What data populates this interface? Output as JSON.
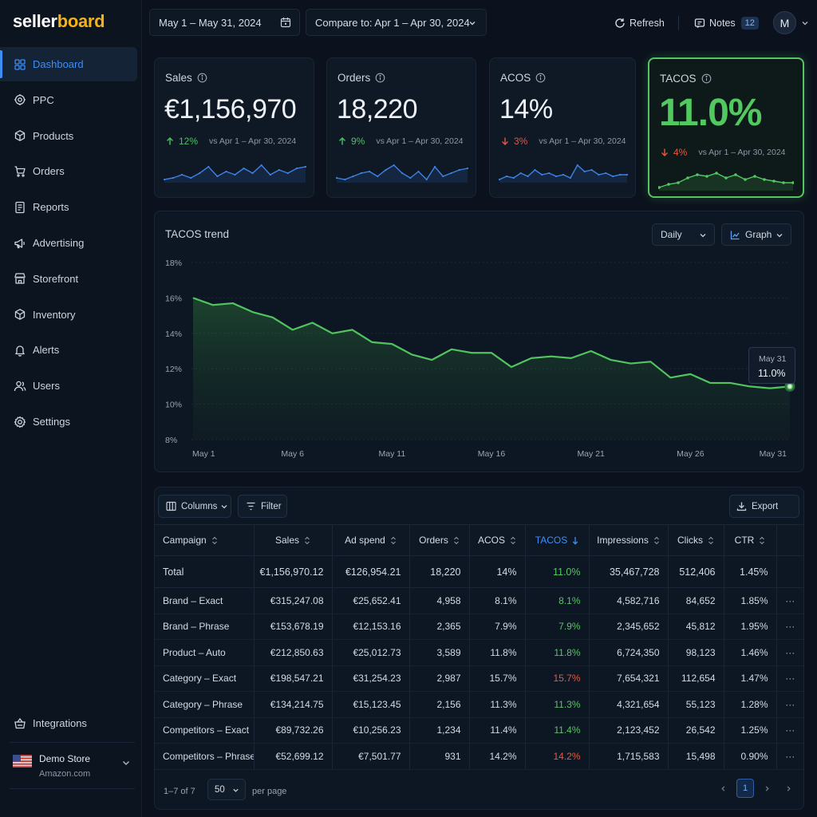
{
  "brand": {
    "part1": "seller",
    "part2": "board",
    "accent": "#f3b21b"
  },
  "sidebar": {
    "items": [
      {
        "label": "Dashboard",
        "icon": "grid-icon",
        "active": true
      },
      {
        "label": "PPC",
        "icon": "target-icon"
      },
      {
        "label": "Products",
        "icon": "box-icon"
      },
      {
        "label": "Orders",
        "icon": "cart-icon"
      },
      {
        "label": "Reports",
        "icon": "report-icon"
      },
      {
        "label": "Advertising",
        "icon": "megaphone-icon"
      },
      {
        "label": "Storefront",
        "icon": "store-icon"
      },
      {
        "label": "Inventory",
        "icon": "cube-icon"
      },
      {
        "label": "Alerts",
        "icon": "bell-icon"
      },
      {
        "label": "Users",
        "icon": "users-icon"
      },
      {
        "label": "Settings",
        "icon": "gear-icon"
      }
    ],
    "integrations": {
      "label": "Integrations",
      "icon": "basket-icon"
    },
    "store": {
      "name": "Demo Store",
      "marketplace": "Amazon.com",
      "flag": "us-flag-icon"
    }
  },
  "topbar": {
    "date_range": "May 1 – May 31, 2024",
    "compare": "Compare to: Apr 1 – Apr 30, 2024",
    "refresh": "Refresh",
    "notes": "Notes",
    "notes_count": "12",
    "avatar_initial": "M"
  },
  "kpis": [
    {
      "id": "sales",
      "title": "Sales",
      "value": "€1,156,970",
      "delta": "12%",
      "direction": "up",
      "vs": "vs Apr 1 – Apr 30, 2024",
      "spark": [
        14,
        15,
        17,
        15,
        18,
        22,
        16,
        19,
        17,
        21,
        18,
        23,
        17,
        20,
        18,
        21,
        22
      ]
    },
    {
      "id": "orders",
      "title": "Orders",
      "value": "18,220",
      "delta": "9%",
      "direction": "up",
      "vs": "vs Apr 1 – Apr 30, 2024",
      "spark": [
        15,
        14,
        16,
        18,
        19,
        16,
        20,
        23,
        18,
        15,
        19,
        14,
        22,
        16,
        18,
        20,
        21
      ]
    },
    {
      "id": "acos",
      "title": "ACOS",
      "value": "14%",
      "delta": "3%",
      "direction": "down",
      "vs": "vs Apr 1 – Apr 30, 2024",
      "spark": [
        12,
        14,
        13,
        16,
        14,
        18,
        15,
        16,
        14,
        15,
        13,
        21,
        17,
        18,
        15,
        16,
        14,
        15,
        15
      ]
    },
    {
      "id": "tacos",
      "title": "TACOS",
      "value": "11.0%",
      "delta": "4%",
      "direction": "down",
      "vs": "vs Apr 1 – Apr 30, 2024",
      "spark": [
        14,
        16,
        17,
        20,
        22,
        21,
        23,
        20,
        22,
        19,
        21,
        19,
        18,
        17,
        17
      ]
    }
  ],
  "colors": {
    "positive": "#4cc262",
    "negative": "#e9553f",
    "tacos_accent": "#52c860",
    "link_blue": "#3d8ef5"
  },
  "trend": {
    "title": "TACOS trend",
    "period": "Daily",
    "view": "Graph",
    "tooltip": {
      "date": "May 31",
      "value": "11.0%"
    }
  },
  "chart_data": {
    "type": "area",
    "title": "TACOS trend",
    "x": [
      "May 1",
      "May 2",
      "May 3",
      "May 4",
      "May 5",
      "May 6",
      "May 7",
      "May 8",
      "May 9",
      "May 10",
      "May 11",
      "May 12",
      "May 13",
      "May 14",
      "May 15",
      "May 16",
      "May 17",
      "May 18",
      "May 19",
      "May 20",
      "May 21",
      "May 22",
      "May 23",
      "May 24",
      "May 25",
      "May 26",
      "May 27",
      "May 28",
      "May 29",
      "May 30",
      "May 31"
    ],
    "x_ticks": [
      "May 1",
      "May 6",
      "May 11",
      "May 16",
      "May 21",
      "May 26",
      "May 31"
    ],
    "series": [
      {
        "values": [
          16.0,
          15.6,
          15.7,
          15.2,
          14.9,
          14.2,
          14.6,
          14.0,
          14.2,
          13.5,
          13.4,
          12.8,
          12.5,
          13.1,
          12.9,
          12.9,
          12.1,
          12.6,
          12.7,
          12.6,
          13.0,
          12.5,
          12.3,
          12.4,
          11.5,
          11.7,
          11.2,
          11.2,
          11.0,
          10.9,
          11.0
        ]
      }
    ],
    "yticks": [
      "18%",
      "16%",
      "14%",
      "12%",
      "10%",
      "8%"
    ],
    "ylim": [
      8,
      18
    ],
    "grid": true
  },
  "table": {
    "toolbar": {
      "columns": "Columns",
      "filter": "Filter",
      "export": "Export"
    },
    "headers": [
      "Campaign",
      "Sales",
      "Ad spend",
      "Orders",
      "ACOS",
      "TACOS",
      "Impressions",
      "Clicks",
      "CTR"
    ],
    "sorted_column": "TACOS",
    "total": {
      "campaign": "Total",
      "sales": "€1,156,970.12",
      "ad_spend": "€126,954.21",
      "orders": "18,220",
      "acos": "14%",
      "tacos": "11.0%",
      "impressions": "35,467,728",
      "clicks": "512,406",
      "ctr": "1.45%"
    },
    "rows": [
      {
        "campaign": "Brand – Exact",
        "sales": "€315,247.08",
        "ad_spend": "€25,652.41",
        "orders": "4,958",
        "acos": "8.1%",
        "tacos": "8.1%",
        "tacos_status": "good",
        "impressions": "4,582,716",
        "clicks": "84,652",
        "ctr": "1.85%",
        "more": "···"
      },
      {
        "campaign": "Brand – Phrase",
        "sales": "€153,678.19",
        "ad_spend": "€12,153.16",
        "orders": "2,365",
        "acos": "7.9%",
        "tacos": "7.9%",
        "tacos_status": "good",
        "impressions": "2,345,652",
        "clicks": "45,812",
        "ctr": "1.95%",
        "more": "···"
      },
      {
        "campaign": "Product – Auto",
        "sales": "€212,850.63",
        "ad_spend": "€25,012.73",
        "orders": "3,589",
        "acos": "11.8%",
        "tacos": "11.8%",
        "tacos_status": "good",
        "impressions": "6,724,350",
        "clicks": "98,123",
        "ctr": "1.46%",
        "more": "···"
      },
      {
        "campaign": "Category – Exact",
        "sales": "€198,547.21",
        "ad_spend": "€31,254.23",
        "orders": "2,987",
        "acos": "15.7%",
        "tacos": "15.7%",
        "tacos_status": "bad",
        "impressions": "7,654,321",
        "clicks": "112,654",
        "ctr": "1.47%",
        "more": "···"
      },
      {
        "campaign": "Category – Phrase",
        "sales": "€134,214.75",
        "ad_spend": "€15,123.45",
        "orders": "2,156",
        "acos": "11.3%",
        "tacos": "11.3%",
        "tacos_status": "good",
        "impressions": "4,321,654",
        "clicks": "55,123",
        "ctr": "1.28%",
        "more": "···"
      },
      {
        "campaign": "Competitors – Exact",
        "sales": "€89,732.26",
        "ad_spend": "€10,256.23",
        "orders": "1,234",
        "acos": "11.4%",
        "tacos": "11.4%",
        "tacos_status": "good",
        "impressions": "2,123,452",
        "clicks": "26,542",
        "ctr": "1.25%",
        "more": "···"
      },
      {
        "campaign": "Competitors – Phrase",
        "sales": "€52,699.12",
        "ad_spend": "€7,501.77",
        "orders": "931",
        "acos": "14.2%",
        "tacos": "14.2%",
        "tacos_status": "bad",
        "impressions": "1,715,583",
        "clicks": "15,498",
        "ctr": "0.90%",
        "more": "···"
      }
    ],
    "pagination": {
      "range": "1–7 of 7",
      "page_size": "50",
      "per_page": "per page",
      "current_page": "1"
    }
  }
}
